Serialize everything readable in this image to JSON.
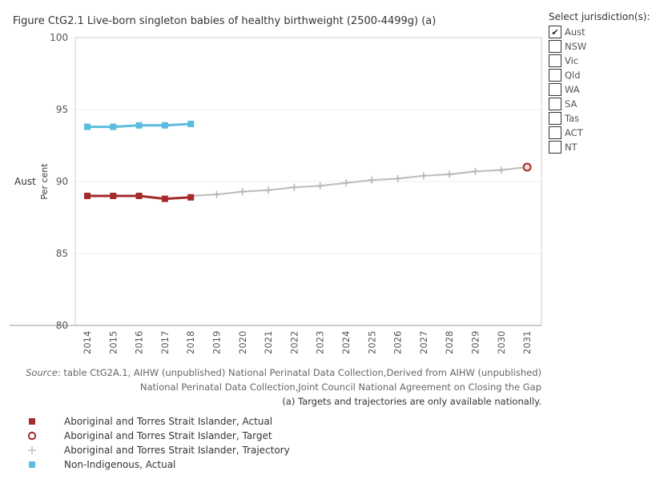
{
  "title": "Figure CtG2.1 Live-born singleton babies of healthy birthweight (2500-4499g) (a)",
  "row_label": "Aust",
  "filter_panel": {
    "title": "Select jurisdiction(s):",
    "check_mark": "✔",
    "options": [
      {
        "label": "Aust",
        "checked": true
      },
      {
        "label": "NSW",
        "checked": false
      },
      {
        "label": "Vic",
        "checked": false
      },
      {
        "label": "Qld",
        "checked": false
      },
      {
        "label": "WA",
        "checked": false
      },
      {
        "label": "SA",
        "checked": false
      },
      {
        "label": "Tas",
        "checked": false
      },
      {
        "label": "ACT",
        "checked": false
      },
      {
        "label": "NT",
        "checked": false
      }
    ]
  },
  "source": {
    "prefix": "Source",
    "line1": ": table CtG2A.1, AIHW (unpublished) National Perinatal Data Collection,Derived from AIHW (unpublished)",
    "line2": "National Perinatal Data Collection,Joint Council National Agreement on Closing the Gap",
    "note": "(a) Targets and trajectories are only available nationally."
  },
  "legend": [
    {
      "label": "Aboriginal and Torres Strait Islander, Actual",
      "symbol": "square",
      "color": "#a52a2a"
    },
    {
      "label": "Aboriginal and Torres Strait Islander, Target",
      "symbol": "circle",
      "color": "#a52a2a"
    },
    {
      "label": "Aboriginal and Torres Strait Islander, Trajectory",
      "symbol": "plus",
      "color": "#bdbdbd"
    },
    {
      "label": "Non-Indigenous, Actual",
      "symbol": "square",
      "color": "#5bbcdf"
    }
  ],
  "chart_data": {
    "type": "line",
    "title": "Figure CtG2.1 Live-born singleton babies of healthy birthweight (2500-4499g) (a)",
    "ylabel": "Per cent",
    "xlabel": "",
    "ylim": [
      80,
      100
    ],
    "yticks": [
      "100",
      "95",
      "90",
      "85",
      "80"
    ],
    "ytick_values": [
      100,
      95,
      90,
      85,
      80
    ],
    "categories": [
      "2014",
      "2015",
      "2016",
      "2017",
      "2018",
      "2019",
      "2020",
      "2021",
      "2022",
      "2023",
      "2024",
      "2025",
      "2026",
      "2027",
      "2028",
      "2029",
      "2030",
      "2031"
    ],
    "series": [
      {
        "name": "Non-Indigenous, Actual",
        "color": "#5bbcdf",
        "marker": "square",
        "x": [
          "2014",
          "2015",
          "2016",
          "2017",
          "2018"
        ],
        "values": [
          93.8,
          93.8,
          93.9,
          93.9,
          94.0
        ]
      },
      {
        "name": "Aboriginal and Torres Strait Islander, Trajectory",
        "color": "#c0c0c0",
        "marker": "plus",
        "x": [
          "2018",
          "2019",
          "2020",
          "2021",
          "2022",
          "2023",
          "2024",
          "2025",
          "2026",
          "2027",
          "2028",
          "2029",
          "2030",
          "2031"
        ],
        "values": [
          89.0,
          89.1,
          89.3,
          89.4,
          89.6,
          89.7,
          89.9,
          90.1,
          90.2,
          90.4,
          90.5,
          90.7,
          90.8,
          91.0
        ]
      },
      {
        "name": "Aboriginal and Torres Strait Islander, Actual",
        "color": "#a52a2a",
        "marker": "square",
        "x": [
          "2014",
          "2015",
          "2016",
          "2017",
          "2018"
        ],
        "values": [
          89.0,
          89.0,
          89.0,
          88.8,
          88.9
        ]
      },
      {
        "name": "Aboriginal and Torres Strait Islander, Target",
        "color": "#a52a2a",
        "marker": "circle",
        "x": [
          "2031"
        ],
        "values": [
          91.0
        ]
      }
    ]
  }
}
